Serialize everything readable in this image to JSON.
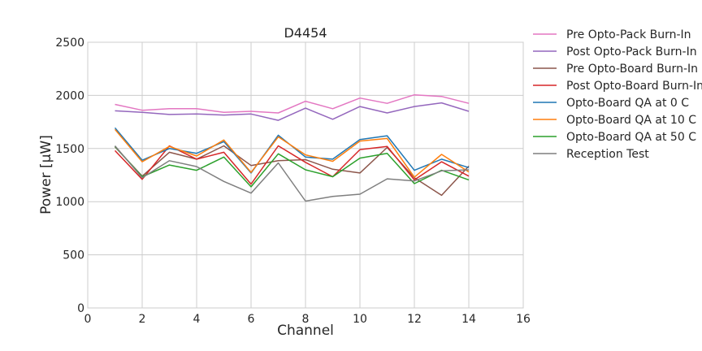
{
  "chart_data": {
    "type": "line",
    "title": "D4454",
    "xlabel": "Channel",
    "ylabel": "Power [μW]",
    "xlim": [
      0,
      16
    ],
    "ylim": [
      0,
      2500
    ],
    "xticks": [
      0,
      2,
      4,
      6,
      8,
      10,
      12,
      14,
      16
    ],
    "yticks": [
      0,
      500,
      1000,
      1500,
      2000,
      2500
    ],
    "grid": true,
    "legend_position": "outside-right",
    "x": [
      1,
      2,
      3,
      4,
      5,
      6,
      7,
      8,
      9,
      10,
      11,
      12,
      13,
      14
    ],
    "series": [
      {
        "name": "Pre Opto-Pack Burn-In",
        "color": "#e377c2",
        "values": [
          1915,
          1860,
          1875,
          1875,
          1840,
          1850,
          1835,
          1945,
          1875,
          1975,
          1925,
          2005,
          1990,
          1925
        ]
      },
      {
        "name": "Post Opto-Pack Burn-In",
        "color": "#9467bd",
        "values": [
          1855,
          1840,
          1820,
          1825,
          1815,
          1825,
          1765,
          1880,
          1775,
          1895,
          1835,
          1895,
          1930,
          1850
        ]
      },
      {
        "name": "Pre Opto-Board Burn-In",
        "color": "#8c564b",
        "values": [
          1515,
          1240,
          1465,
          1400,
          1525,
          1340,
          1385,
          1395,
          1305,
          1270,
          1510,
          1225,
          1060,
          1335
        ]
      },
      {
        "name": "Post Opto-Board Burn-In",
        "color": "#d62728",
        "values": [
          1480,
          1210,
          1525,
          1400,
          1465,
          1165,
          1525,
          1370,
          1235,
          1490,
          1520,
          1205,
          1375,
          1240
        ]
      },
      {
        "name": "Opto-Board QA at 0 C",
        "color": "#1f77b4",
        "values": [
          1695,
          1390,
          1500,
          1455,
          1565,
          1270,
          1625,
          1420,
          1400,
          1585,
          1620,
          1295,
          1400,
          1320
        ]
      },
      {
        "name": "Opto-Board QA at 10 C",
        "color": "#ff7f0e",
        "values": [
          1680,
          1375,
          1520,
          1430,
          1580,
          1275,
          1610,
          1440,
          1380,
          1570,
          1595,
          1230,
          1445,
          1280
        ]
      },
      {
        "name": "Opto-Board QA at 50 C",
        "color": "#2ca02c",
        "values": [
          1520,
          1235,
          1345,
          1295,
          1420,
          1140,
          1450,
          1300,
          1235,
          1410,
          1455,
          1170,
          1295,
          1205
        ]
      },
      {
        "name": "Reception Test",
        "color": "#7f7f7f",
        "values": [
          1525,
          1225,
          1385,
          1330,
          1190,
          1080,
          1365,
          1005,
          1050,
          1070,
          1215,
          1195,
          1290,
          1300
        ]
      }
    ]
  }
}
